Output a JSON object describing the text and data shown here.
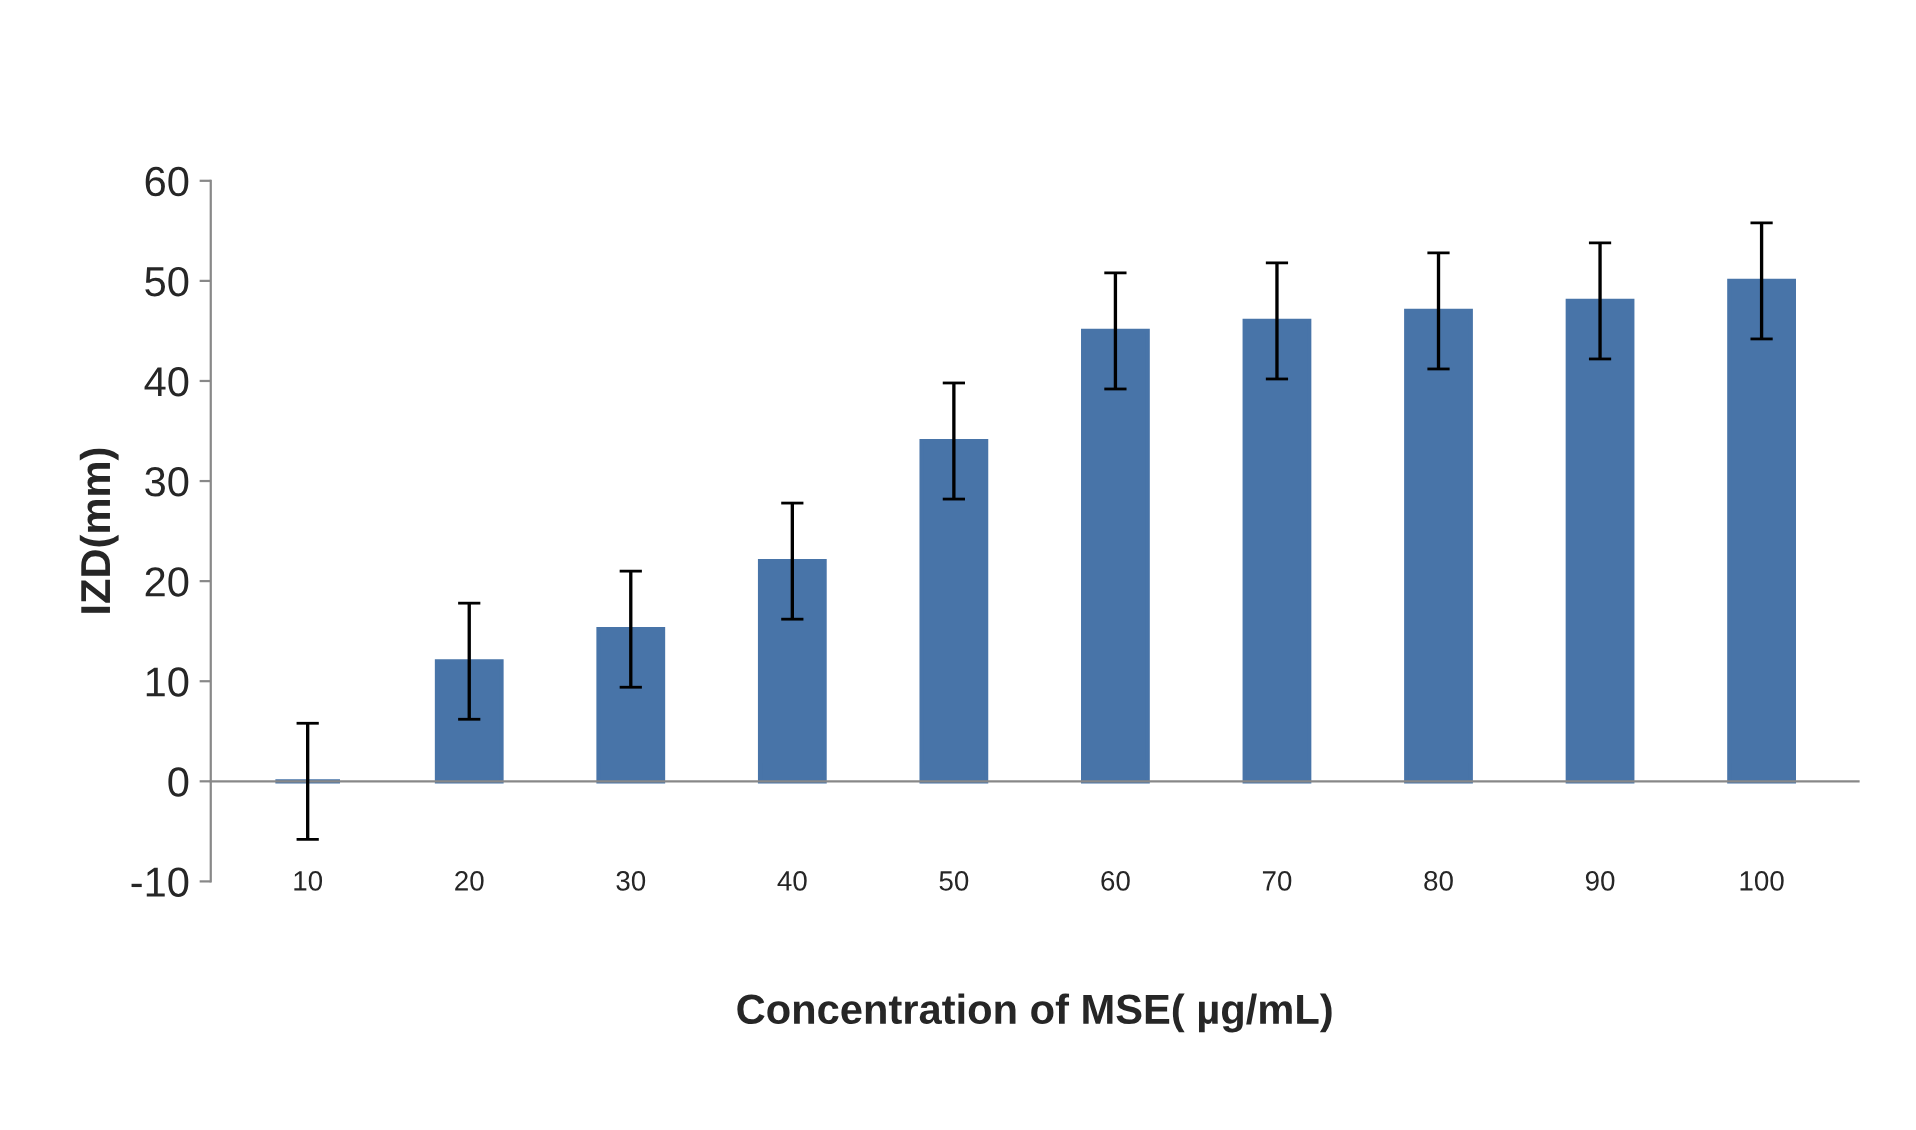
{
  "chart_data": {
    "type": "bar",
    "xlabel": "Concentration of MSE( µg/mL)",
    "ylabel": "IZD(mm)",
    "categories": [
      "10",
      "20",
      "30",
      "40",
      "50",
      "60",
      "70",
      "80",
      "90",
      "100"
    ],
    "values": [
      0,
      12,
      15.2,
      22,
      34,
      45,
      46,
      47,
      48,
      50
    ],
    "errors": [
      5.8,
      5.8,
      5.8,
      5.8,
      5.8,
      5.8,
      5.8,
      5.8,
      5.8,
      5.8
    ],
    "color": "#4874a8",
    "ylim": [
      -10,
      60
    ],
    "yticks": [
      -10,
      0,
      10,
      20,
      30,
      40,
      50,
      60
    ],
    "legend": false
  }
}
